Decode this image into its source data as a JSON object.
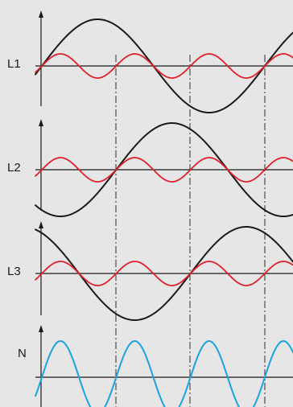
{
  "background_color": "#e6e6e6",
  "colors": {
    "fundamental": "#1a1a1a",
    "third_harmonic": "#e0202a",
    "neutral": "#1aa3e0",
    "axis": "#1a1a1a"
  },
  "panels": [
    {
      "label": "L1"
    },
    {
      "label": "L2"
    },
    {
      "label": "L3"
    },
    {
      "label": "N"
    }
  ]
}
